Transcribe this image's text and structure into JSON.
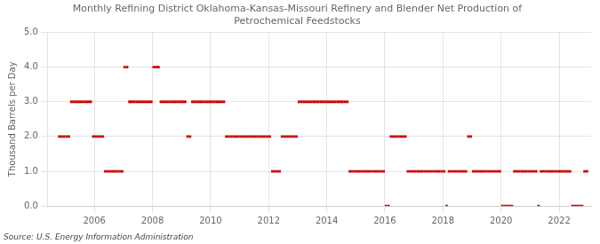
{
  "chart_data": {
    "type": "scatter",
    "title": "Monthly Refining District Oklahoma-Kansas-Missouri Refinery and Blender Net Production of\nPetrochemical Feedstocks",
    "ylabel": "Thousand Barrels per Day",
    "source": "Source: U.S. Energy Information Administration",
    "color": "#cc0000",
    "marker": "square",
    "grid": true,
    "xlim": [
      2004.4,
      2023.1
    ],
    "xticks": [
      2006,
      2008,
      2010,
      2012,
      2014,
      2016,
      2018,
      2020,
      2022
    ],
    "ylim": [
      0.0,
      5.0
    ],
    "yticks": [
      {
        "value": 0.0,
        "label": "0.0"
      },
      {
        "value": 1.0,
        "label": "1.0"
      },
      {
        "value": 2.0,
        "label": "2.0"
      },
      {
        "value": 3.0,
        "label": "3.0"
      },
      {
        "value": 4.0,
        "label": "4.0"
      },
      {
        "value": 5.0,
        "label": "5.0"
      }
    ],
    "x": [
      2004.7916666666667,
      2004.875,
      2004.9583333333333,
      2005.0416666666667,
      2005.125,
      2005.2083333333333,
      2005.2916666666667,
      2005.375,
      2005.4583333333333,
      2005.5416666666667,
      2005.625,
      2005.7083333333333,
      2005.7916666666667,
      2005.875,
      2005.9583333333333,
      2006.0416666666667,
      2006.125,
      2006.2083333333333,
      2006.2916666666667,
      2006.375,
      2006.4583333333333,
      2006.5416666666667,
      2006.625,
      2006.7083333333333,
      2006.7916666666667,
      2006.875,
      2006.9583333333333,
      2007.0416666666667,
      2007.125,
      2007.2083333333333,
      2007.2916666666667,
      2007.375,
      2007.4583333333333,
      2007.5416666666667,
      2007.625,
      2007.7083333333333,
      2007.7916666666667,
      2007.875,
      2007.9583333333333,
      2008.0416666666667,
      2008.125,
      2008.2083333333333,
      2008.2916666666667,
      2008.375,
      2008.4583333333333,
      2008.5416666666667,
      2008.625,
      2008.7083333333333,
      2008.7916666666667,
      2008.875,
      2008.9583333333333,
      2009.0416666666667,
      2009.125,
      2009.2083333333333,
      2009.2916666666667,
      2009.375,
      2009.4583333333333,
      2009.5416666666667,
      2009.625,
      2009.7083333333333,
      2009.7916666666667,
      2009.875,
      2009.9583333333333,
      2010.0416666666667,
      2010.125,
      2010.2083333333333,
      2010.2916666666667,
      2010.375,
      2010.4583333333333,
      2010.5416666666667,
      2010.625,
      2010.7083333333333,
      2010.7916666666667,
      2010.875,
      2010.9583333333333,
      2011.0416666666667,
      2011.125,
      2011.2083333333333,
      2011.2916666666667,
      2011.375,
      2011.4583333333333,
      2011.5416666666667,
      2011.625,
      2011.7083333333333,
      2011.7916666666667,
      2011.875,
      2011.9583333333333,
      2012.0416666666667,
      2012.125,
      2012.2083333333333,
      2012.2916666666667,
      2012.375,
      2012.4583333333333,
      2012.5416666666667,
      2012.625,
      2012.7083333333333,
      2012.7916666666667,
      2012.875,
      2012.9583333333333,
      2013.0416666666667,
      2013.125,
      2013.2083333333333,
      2013.2916666666667,
      2013.375,
      2013.4583333333333,
      2013.5416666666667,
      2013.625,
      2013.7083333333333,
      2013.7916666666667,
      2013.875,
      2013.9583333333333,
      2014.0416666666667,
      2014.125,
      2014.2083333333333,
      2014.2916666666667,
      2014.375,
      2014.4583333333333,
      2014.5416666666667,
      2014.625,
      2014.7083333333333,
      2014.7916666666667,
      2014.875,
      2014.9583333333333,
      2015.0416666666667,
      2015.125,
      2015.2083333333333,
      2015.2916666666667,
      2015.375,
      2015.4583333333333,
      2015.5416666666667,
      2015.625,
      2015.7083333333333,
      2015.7916666666667,
      2015.875,
      2015.9583333333333,
      2016.0416666666667,
      2016.125,
      2016.2083333333333,
      2016.2916666666667,
      2016.375,
      2016.4583333333333,
      2016.5416666666667,
      2016.625,
      2016.7083333333333,
      2016.7916666666667,
      2016.875,
      2016.9583333333333,
      2017.0416666666667,
      2017.125,
      2017.2083333333333,
      2017.2916666666667,
      2017.375,
      2017.4583333333333,
      2017.5416666666667,
      2017.625,
      2017.7083333333333,
      2017.7916666666667,
      2017.875,
      2017.9583333333333,
      2018.0416666666667,
      2018.125,
      2018.2083333333333,
      2018.2916666666667,
      2018.375,
      2018.4583333333333,
      2018.5416666666667,
      2018.625,
      2018.7083333333333,
      2018.7916666666667,
      2018.875,
      2018.9583333333333,
      2019.0416666666667,
      2019.125,
      2019.2083333333333,
      2019.2916666666667,
      2019.375,
      2019.4583333333333,
      2019.5416666666667,
      2019.625,
      2019.7083333333333,
      2019.7916666666667,
      2019.875,
      2019.9583333333333,
      2020.0416666666667,
      2020.125,
      2020.2083333333333,
      2020.2916666666667,
      2020.375,
      2020.4583333333333,
      2020.5416666666667,
      2020.625,
      2020.7083333333333,
      2020.7916666666667,
      2020.875,
      2020.9583333333333,
      2021.0416666666667,
      2021.125,
      2021.2083333333333,
      2021.2916666666667,
      2021.375,
      2021.4583333333333,
      2021.5416666666667,
      2021.625,
      2021.7083333333333,
      2021.7916666666667,
      2021.875,
      2021.9583333333333,
      2022.0416666666667,
      2022.125,
      2022.2083333333333,
      2022.2916666666667,
      2022.375,
      2022.4583333333333,
      2022.5416666666667,
      2022.625,
      2022.7083333333333,
      2022.7916666666667,
      2022.875,
      2022.9583333333333
    ],
    "values": [
      2,
      2,
      2,
      2,
      2,
      3,
      3,
      3,
      3,
      3,
      3,
      3,
      3,
      3,
      2,
      2,
      2,
      2,
      2,
      1,
      1,
      1,
      1,
      1,
      1,
      1,
      1,
      4,
      4,
      3,
      3,
      3,
      3,
      3,
      3,
      3,
      3,
      3,
      3,
      4,
      4,
      4,
      3,
      3,
      3,
      3,
      3,
      3,
      3,
      3,
      3,
      3,
      3,
      2,
      2,
      3,
      3,
      3,
      3,
      3,
      3,
      3,
      3,
      3,
      3,
      3,
      3,
      3,
      3,
      2,
      2,
      2,
      2,
      2,
      2,
      2,
      2,
      2,
      2,
      2,
      2,
      2,
      2,
      2,
      2,
      2,
      2,
      2,
      1,
      1,
      1,
      1,
      2,
      2,
      2,
      2,
      2,
      2,
      2,
      3,
      3,
      3,
      3,
      3,
      3,
      3,
      3,
      3,
      3,
      3,
      3,
      3,
      3,
      3,
      3,
      3,
      3,
      3,
      3,
      3,
      1,
      1,
      1,
      1,
      1,
      1,
      1,
      1,
      1,
      1,
      1,
      1,
      1,
      1,
      1,
      0,
      0,
      2,
      2,
      2,
      2,
      2,
      2,
      2,
      1,
      1,
      1,
      1,
      1,
      1,
      1,
      1,
      1,
      1,
      1,
      1,
      1,
      1,
      1,
      1,
      0,
      1,
      1,
      1,
      1,
      1,
      1,
      1,
      1,
      2,
      2,
      1,
      1,
      1,
      1,
      1,
      1,
      1,
      1,
      1,
      1,
      1,
      1,
      0,
      0,
      0,
      0,
      0,
      1,
      1,
      1,
      1,
      1,
      1,
      1,
      1,
      1,
      1,
      0,
      1,
      1,
      1,
      1,
      1,
      1,
      1,
      1,
      1,
      1,
      1,
      1,
      1,
      0,
      0,
      0,
      0,
      0,
      1,
      1
    ]
  }
}
